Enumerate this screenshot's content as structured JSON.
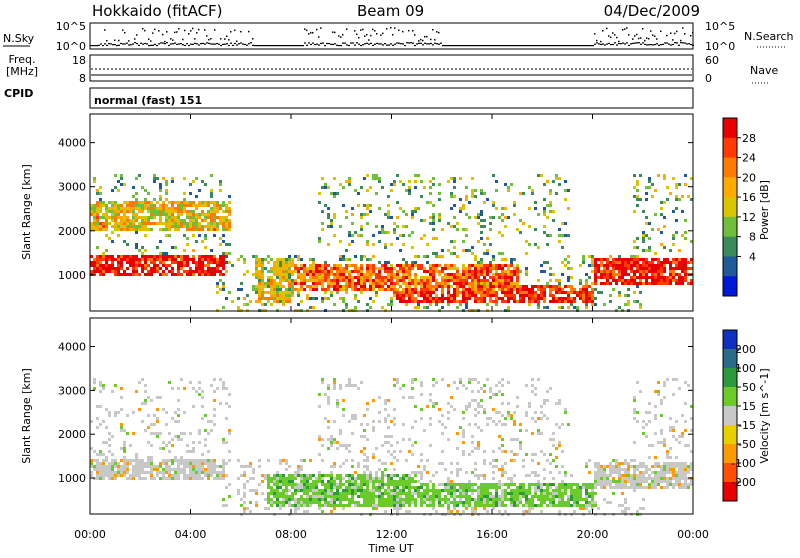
{
  "header": {
    "station": "Hokkaido (fitACF)",
    "beam": "Beam 09",
    "date": "04/Dec/2009"
  },
  "noise_panel": {
    "left_label": "N.Sky",
    "right_label": "N.Search",
    "tick_top": "10^5",
    "tick_bottom": "10^0"
  },
  "freq_panel": {
    "label_line1": "Freq.",
    "label_line2": "[MHz]",
    "left_ticks": [
      "18",
      "8"
    ],
    "right_label": "Nave",
    "right_ticks": [
      "60",
      "0"
    ]
  },
  "cpid": {
    "label": "CPID",
    "text": "normal (fast) 151"
  },
  "chart_data": [
    {
      "type": "heatmap",
      "title": "",
      "xlabel": "",
      "ylabel": "Slant Range [km]",
      "x_ticks": [
        "00:00",
        "04:00",
        "08:00",
        "12:00",
        "16:00",
        "20:00",
        "00:00"
      ],
      "y_ticks": [
        1000,
        2000,
        3000,
        4000
      ],
      "ylim": [
        180,
        4650
      ],
      "xlim_hours": [
        0,
        24
      ],
      "colorbar": {
        "label": "Power [dB]",
        "ticks": [
          "28",
          "24",
          "20",
          "16",
          "12",
          "8",
          "4"
        ],
        "colors": [
          "#e80000",
          "#ff3a00",
          "#ff7a00",
          "#ffaa00",
          "#d8c400",
          "#6fbf3a",
          "#3a8a5a",
          "#205a9a",
          "#0018d8"
        ]
      },
      "regions": [
        {
          "x": [
            0,
            5.3
          ],
          "y": [
            1000,
            1500
          ],
          "value": 28
        },
        {
          "x": [
            0,
            5.5
          ],
          "y": [
            2000,
            2700
          ],
          "value": 16
        },
        {
          "x": [
            6.5,
            8
          ],
          "y": [
            400,
            1400
          ],
          "value": 14
        },
        {
          "x": [
            8,
            17
          ],
          "y": [
            700,
            1300
          ],
          "value": 22
        },
        {
          "x": [
            12,
            20
          ],
          "y": [
            400,
            800
          ],
          "value": 26
        },
        {
          "x": [
            20,
            24
          ],
          "y": [
            800,
            1400
          ],
          "value": 28
        }
      ]
    },
    {
      "type": "heatmap",
      "title": "",
      "xlabel": "Time UT",
      "ylabel": "Slant Range [km]",
      "x_ticks": [
        "00:00",
        "04:00",
        "08:00",
        "12:00",
        "16:00",
        "20:00",
        "00:00"
      ],
      "y_ticks": [
        1000,
        2000,
        3000,
        4000
      ],
      "ylim": [
        180,
        4650
      ],
      "xlim_hours": [
        0,
        24
      ],
      "colorbar": {
        "label": "Velocity [m s^-1]",
        "ticks": [
          "200",
          "100",
          "50",
          "15",
          "-15",
          "-50",
          "-100",
          "-200"
        ],
        "colors": [
          "#1030c0",
          "#2a6a8a",
          "#2a9a3a",
          "#6acb2a",
          "#c8c8c8",
          "#e8d000",
          "#ff9a00",
          "#ff5000",
          "#e80000"
        ]
      },
      "regions": [
        {
          "x": [
            0,
            5.3
          ],
          "y": [
            1000,
            1500
          ],
          "value": 0
        },
        {
          "x": [
            7,
            13
          ],
          "y": [
            400,
            1100
          ],
          "value": 50
        },
        {
          "x": [
            13,
            20
          ],
          "y": [
            400,
            900
          ],
          "value": 50
        },
        {
          "x": [
            20,
            24
          ],
          "y": [
            800,
            1400
          ],
          "value": 0
        }
      ]
    }
  ]
}
